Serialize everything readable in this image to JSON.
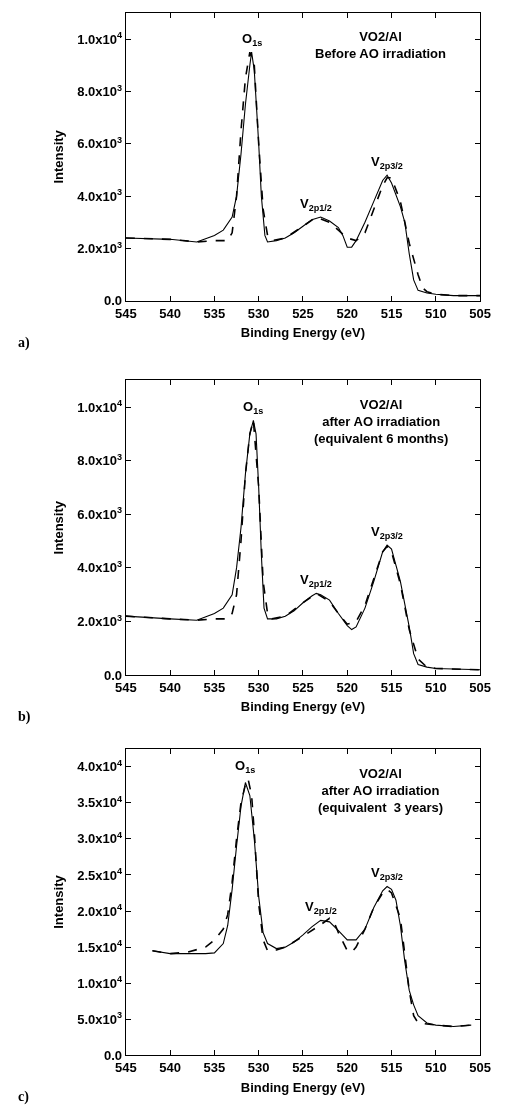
{
  "chart_data": [
    {
      "type": "line",
      "xlabel": "Binding Energy (eV)",
      "ylabel": "Intensity",
      "xlim": [
        545,
        505
      ],
      "xticks": [
        545,
        540,
        535,
        530,
        525,
        520,
        515,
        510,
        505
      ],
      "ylim": [
        0,
        11000
      ],
      "yticks": [
        {
          "value": 0,
          "label": "0.0"
        },
        {
          "value": 2000,
          "label": "2.0x10$^{3}$"
        },
        {
          "value": 4000,
          "label": "4.0x10$^{3}$"
        },
        {
          "value": 6000,
          "label": "6.0x10$^{3}$"
        },
        {
          "value": 8000,
          "label": "8.0x10$^{3}$"
        },
        {
          "value": 10000,
          "label": "1.0x10$^{4}$"
        }
      ],
      "series": [
        {
          "color": "#000000",
          "line_style": "solid",
          "x": [
            545,
            540,
            537,
            535,
            534,
            533,
            532.5,
            532,
            531.5,
            531,
            530.8,
            530.5,
            530,
            529.7,
            529.3,
            529,
            528,
            527,
            526,
            525,
            524,
            523,
            522,
            521,
            520.5,
            520,
            519.5,
            519,
            518,
            517,
            516,
            515.5,
            515,
            514,
            513.5,
            513,
            512.5,
            512,
            511,
            510,
            508,
            505
          ],
          "values": [
            2400,
            2350,
            2250,
            2500,
            2700,
            3200,
            4000,
            5600,
            7500,
            9000,
            9500,
            8800,
            6000,
            4000,
            2500,
            2250,
            2300,
            2400,
            2600,
            2850,
            3100,
            3200,
            3050,
            2800,
            2500,
            2050,
            2050,
            2300,
            3000,
            3800,
            4600,
            4800,
            4500,
            3600,
            3000,
            1800,
            800,
            400,
            300,
            250,
            200,
            200
          ]
        },
        {
          "color": "#000000",
          "line_style": "dashed",
          "x": [
            545,
            540,
            537,
            535,
            533.5,
            533,
            532.5,
            532,
            531.5,
            531,
            530.5,
            530,
            529.5,
            529,
            528.5,
            527,
            525,
            523.5,
            522,
            521,
            520,
            519,
            518,
            517,
            516,
            515.5,
            515,
            514,
            513,
            512,
            511.5,
            511,
            510,
            508,
            505
          ],
          "values": [
            2400,
            2350,
            2250,
            2300,
            2300,
            2600,
            4000,
            6500,
            8500,
            9500,
            9000,
            6000,
            3500,
            2500,
            2300,
            2400,
            2850,
            3200,
            3000,
            2700,
            2400,
            2300,
            2600,
            3500,
            4400,
            4700,
            4700,
            3800,
            2200,
            1000,
            500,
            350,
            250,
            200,
            200
          ]
        }
      ],
      "annotations": [
        {
          "text": "O$_{1s}$",
          "x": 530.8,
          "y": 9500
        },
        {
          "text": "V$_{2p1/2}$",
          "x": 523.5,
          "y": 3200
        },
        {
          "text": "V$_{2p3/2}$",
          "x": 515.5,
          "y": 4800
        },
        "VO2/Al\nBefore AO irradiation",
        "a)"
      ]
    },
    {
      "type": "line",
      "xlabel": "Binding Energy (eV)",
      "ylabel": "Intensity",
      "xlim": [
        545,
        505
      ],
      "xticks": [
        545,
        540,
        535,
        530,
        525,
        520,
        515,
        510,
        505
      ],
      "ylim": [
        0,
        11000
      ],
      "yticks": [
        {
          "value": 0,
          "label": "0.0"
        },
        {
          "value": 2000,
          "label": "2.0x10$^{3}$"
        },
        {
          "value": 4000,
          "label": "4.0x10$^{3}$"
        },
        {
          "value": 6000,
          "label": "6.0x10$^{3}$"
        },
        {
          "value": 8000,
          "label": "8.0x10$^{3}$"
        },
        {
          "value": 10000,
          "label": "1.0x10$^{4}$"
        }
      ],
      "series": [
        {
          "color": "#000000",
          "line_style": "solid",
          "x": [
            545,
            540,
            537,
            535,
            534,
            533,
            532.5,
            532,
            531.5,
            531,
            530.6,
            530.3,
            530,
            529.7,
            529.4,
            529,
            528,
            527,
            526,
            525,
            524,
            523.5,
            523,
            522,
            521,
            520,
            519.5,
            519,
            518,
            517,
            516,
            515.5,
            515,
            514,
            513,
            512.5,
            512,
            511,
            510,
            505
          ],
          "values": [
            2200,
            2100,
            2050,
            2300,
            2500,
            3000,
            4000,
            5500,
            7500,
            9000,
            9500,
            9000,
            7000,
            4500,
            2500,
            2100,
            2100,
            2200,
            2400,
            2700,
            2950,
            3050,
            3000,
            2800,
            2300,
            1850,
            1700,
            1800,
            2500,
            3500,
            4600,
            4850,
            4700,
            3500,
            1800,
            800,
            400,
            300,
            250,
            200
          ]
        },
        {
          "color": "#000000",
          "line_style": "dashed",
          "x": [
            545,
            540,
            537,
            535,
            533.5,
            533,
            532.5,
            532,
            531.5,
            531,
            530.6,
            530,
            529.5,
            529,
            528.5,
            527,
            525,
            523.5,
            522,
            521,
            520,
            519,
            518,
            517,
            516,
            515.5,
            515,
            514,
            513,
            512,
            511,
            510,
            505
          ],
          "values": [
            2200,
            2100,
            2050,
            2100,
            2100,
            2300,
            3000,
            5000,
            7500,
            9000,
            9500,
            7000,
            3500,
            2300,
            2100,
            2200,
            2700,
            3050,
            2750,
            2300,
            1900,
            2000,
            2600,
            3600,
            4600,
            4800,
            4600,
            3400,
            1700,
            600,
            300,
            250,
            200
          ]
        }
      ],
      "annotations": [
        {
          "text": "O$_{1s}$",
          "x": 530.6,
          "y": 9500
        },
        {
          "text": "V$_{2p1/2}$",
          "x": 523.5,
          "y": 3050
        },
        {
          "text": "V$_{2p3/2}$",
          "x": 515.5,
          "y": 4850
        },
        "VO2/Al\nafter AO irradiation\n(equivalent 6 months)",
        "b)"
      ]
    },
    {
      "type": "line",
      "xlabel": "Binding Energy (eV)",
      "ylabel": "Intensity",
      "xlim": [
        545,
        505
      ],
      "xticks": [
        545,
        540,
        535,
        530,
        525,
        520,
        515,
        510,
        505
      ],
      "ylim": [
        0,
        42500
      ],
      "yticks": [
        {
          "value": 0,
          "label": "0.0"
        },
        {
          "value": 5000,
          "label": "5.0x10$^{3}$"
        },
        {
          "value": 10000,
          "label": "1.0x10$^{4}$"
        },
        {
          "value": 15000,
          "label": "1.5x10$^{4}$"
        },
        {
          "value": 20000,
          "label": "2.0x10$^{4}$"
        },
        {
          "value": 25000,
          "label": "2.5x10$^{4}$"
        },
        {
          "value": 30000,
          "label": "3.0x10$^{4}$"
        },
        {
          "value": 35000,
          "label": "3.5x10$^{4}$"
        },
        {
          "value": 40000,
          "label": "4.0x10$^{4}$"
        }
      ],
      "series": [
        {
          "color": "#000000",
          "line_style": "solid",
          "x": [
            542,
            540,
            538,
            536,
            535,
            534,
            533.5,
            533,
            532.5,
            532,
            531.5,
            531,
            530.5,
            530,
            529.5,
            529,
            528,
            527,
            526,
            525,
            524,
            523,
            522,
            521,
            520,
            519,
            518,
            517,
            516,
            515.5,
            515,
            514.5,
            514,
            513.5,
            513,
            512.5,
            512,
            511,
            510,
            508,
            506
          ],
          "values": [
            14500,
            14100,
            14100,
            14100,
            14200,
            15500,
            18000,
            23000,
            29000,
            34500,
            37800,
            36000,
            30000,
            22000,
            17000,
            15500,
            14800,
            15000,
            15700,
            16700,
            17800,
            18700,
            18500,
            17300,
            16000,
            16000,
            17500,
            20500,
            22800,
            23400,
            23000,
            21500,
            18000,
            13000,
            9000,
            7000,
            5500,
            4500,
            4200,
            4000,
            4200
          ]
        },
        {
          "color": "#000000",
          "line_style": "dashed",
          "x": [
            542,
            540,
            538,
            536,
            535,
            534,
            533.5,
            533,
            532.5,
            532,
            531.5,
            531.2,
            530.8,
            530.5,
            530,
            529.5,
            529,
            528,
            527,
            525,
            523,
            522,
            521.5,
            521,
            520,
            519.5,
            519,
            518,
            517,
            516,
            515.5,
            515,
            514,
            513.5,
            513,
            512.5,
            512,
            510,
            508,
            506
          ],
          "values": [
            14500,
            14100,
            14300,
            15000,
            16000,
            17500,
            19500,
            24000,
            30000,
            35000,
            37500,
            38300,
            36000,
            31000,
            21000,
            16000,
            14500,
            14600,
            15000,
            16500,
            18100,
            19000,
            18500,
            17000,
            14500,
            14300,
            15000,
            17500,
            20500,
            22500,
            23000,
            22500,
            19000,
            14000,
            9000,
            5500,
            4500,
            4200,
            4000,
            4200
          ]
        }
      ],
      "annotations": [
        {
          "text": "O$_{1s}$",
          "x": 531.5,
          "y": 38300
        },
        {
          "text": "V$_{2p1/2}$",
          "x": 523,
          "y": 18700
        },
        {
          "text": "V$_{2p3/2}$",
          "x": 515.5,
          "y": 23400
        },
        "VO2/Al\nafter AO irradiation\n(equivalent  3 years)",
        "c)"
      ]
    }
  ]
}
